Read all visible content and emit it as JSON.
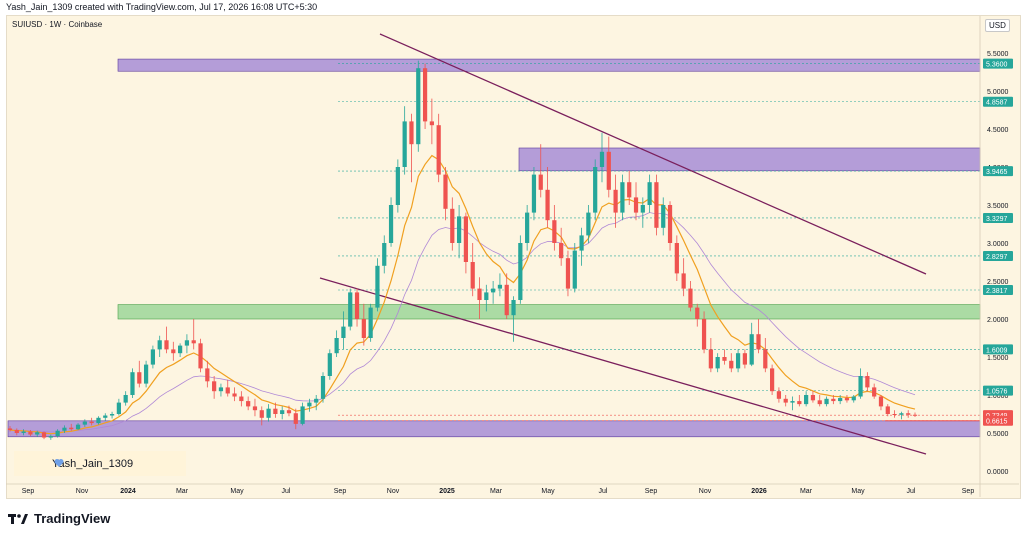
{
  "caption": "Yash_Jain_1309 created with TradingView.com, Jul 17, 2026 16:08 UTC+5:30",
  "symbol": "SUIUSD · 1W · Coinbase",
  "currency": "USD",
  "watermark": "Yash_Jain_1309",
  "brand": "TradingView",
  "colors": {
    "up": "#26a69a",
    "down": "#ef5350",
    "ema_short": "#f0a020",
    "ema_long": "#b089d6",
    "resistance_zone": "#9b7fd4",
    "support_zone": "#8fd28f",
    "trend": "#7a1f5c"
  },
  "chart_data": {
    "type": "candlestick",
    "y_ticks": [
      "5.5000",
      "5.0000",
      "4.5000",
      "4.0000",
      "3.5000",
      "3.0000",
      "2.5000",
      "2.0000",
      "1.5000",
      "1.0000",
      "0.5000",
      "0.0000"
    ],
    "x_ticks": [
      "Sep",
      "Nov",
      "2024",
      "Mar",
      "May",
      "Jul",
      "Sep",
      "Nov",
      "2025",
      "Mar",
      "May",
      "Jul",
      "Sep",
      "Nov",
      "2026",
      "Mar",
      "May",
      "Jul",
      "Sep"
    ],
    "level_labels": [
      {
        "label": "5.3600",
        "value": 5.36,
        "color": "#26a69a"
      },
      {
        "label": "4.8587",
        "value": 4.8587,
        "color": "#26a69a"
      },
      {
        "label": "3.9465",
        "value": 3.9465,
        "color": "#26a69a"
      },
      {
        "label": "3.3297",
        "value": 3.3297,
        "color": "#26a69a"
      },
      {
        "label": "2.8297",
        "value": 2.8297,
        "color": "#26a69a"
      },
      {
        "label": "2.3817",
        "value": 2.3817,
        "color": "#26a69a"
      },
      {
        "label": "1.6009",
        "value": 1.6009,
        "color": "#26a69a"
      },
      {
        "label": "1.0576",
        "value": 1.0576,
        "color": "#26a69a"
      },
      {
        "label": "0.7349",
        "value": 0.7349,
        "color": "#ef5350"
      },
      {
        "label": "0.6615",
        "value": 0.6615,
        "color": "#ef5350"
      }
    ],
    "zones": [
      {
        "from": 5.26,
        "to": 5.42,
        "color": "#9b7fd4"
      },
      {
        "from": 3.95,
        "to": 4.25,
        "color": "#9b7fd4"
      },
      {
        "from": 2.0,
        "to": 2.19,
        "color": "#8fd28f"
      },
      {
        "from": 0.45,
        "to": 0.66,
        "color": "#9b7fd4"
      }
    ],
    "trendlines": [
      {
        "from": [
          "Aug 2024",
          5.9
        ],
        "to": [
          "Jul 2026",
          2.6
        ]
      },
      {
        "from": [
          "Aug 2024",
          2.6
        ],
        "to": [
          "Jul 2026",
          0.22
        ]
      }
    ],
    "candles": [
      [
        0.56,
        0.59,
        0.52,
        0.54
      ],
      [
        0.54,
        0.56,
        0.47,
        0.5
      ],
      [
        0.5,
        0.55,
        0.47,
        0.52
      ],
      [
        0.52,
        0.54,
        0.46,
        0.48
      ],
      [
        0.48,
        0.53,
        0.45,
        0.51
      ],
      [
        0.51,
        0.52,
        0.42,
        0.44
      ],
      [
        0.44,
        0.48,
        0.41,
        0.46
      ],
      [
        0.46,
        0.55,
        0.44,
        0.53
      ],
      [
        0.53,
        0.6,
        0.5,
        0.57
      ],
      [
        0.57,
        0.62,
        0.53,
        0.55
      ],
      [
        0.55,
        0.63,
        0.54,
        0.61
      ],
      [
        0.61,
        0.68,
        0.58,
        0.65
      ],
      [
        0.65,
        0.7,
        0.6,
        0.63
      ],
      [
        0.63,
        0.72,
        0.61,
        0.7
      ],
      [
        0.7,
        0.76,
        0.66,
        0.73
      ],
      [
        0.73,
        0.78,
        0.69,
        0.75
      ],
      [
        0.75,
        0.95,
        0.73,
        0.9
      ],
      [
        0.9,
        1.05,
        0.86,
        1.0
      ],
      [
        1.0,
        1.35,
        0.96,
        1.3
      ],
      [
        1.3,
        1.45,
        1.1,
        1.15
      ],
      [
        1.15,
        1.45,
        1.1,
        1.4
      ],
      [
        1.4,
        1.65,
        1.35,
        1.6
      ],
      [
        1.6,
        1.78,
        1.5,
        1.72
      ],
      [
        1.72,
        1.9,
        1.55,
        1.6
      ],
      [
        1.6,
        1.7,
        1.45,
        1.55
      ],
      [
        1.55,
        1.68,
        1.5,
        1.65
      ],
      [
        1.65,
        1.8,
        1.55,
        1.72
      ],
      [
        1.72,
        2.0,
        1.6,
        1.68
      ],
      [
        1.68,
        1.74,
        1.3,
        1.35
      ],
      [
        1.35,
        1.45,
        1.1,
        1.18
      ],
      [
        1.18,
        1.25,
        0.95,
        1.05
      ],
      [
        1.05,
        1.15,
        0.98,
        1.1
      ],
      [
        1.1,
        1.2,
        0.98,
        1.02
      ],
      [
        1.02,
        1.1,
        0.92,
        0.98
      ],
      [
        0.98,
        1.05,
        0.85,
        0.92
      ],
      [
        0.92,
        0.98,
        0.8,
        0.85
      ],
      [
        0.85,
        0.95,
        0.72,
        0.8
      ],
      [
        0.8,
        0.85,
        0.6,
        0.7
      ],
      [
        0.7,
        0.88,
        0.65,
        0.82
      ],
      [
        0.82,
        0.9,
        0.7,
        0.75
      ],
      [
        0.75,
        0.85,
        0.68,
        0.8
      ],
      [
        0.8,
        0.86,
        0.72,
        0.76
      ],
      [
        0.76,
        0.82,
        0.55,
        0.62
      ],
      [
        0.62,
        0.9,
        0.6,
        0.85
      ],
      [
        0.85,
        0.95,
        0.78,
        0.9
      ],
      [
        0.9,
        1.0,
        0.8,
        0.95
      ],
      [
        0.95,
        1.3,
        0.9,
        1.25
      ],
      [
        1.25,
        1.6,
        1.2,
        1.55
      ],
      [
        1.55,
        1.85,
        1.5,
        1.75
      ],
      [
        1.75,
        2.1,
        1.6,
        1.9
      ],
      [
        1.9,
        2.4,
        1.85,
        2.35
      ],
      [
        2.35,
        2.4,
        1.9,
        2.0
      ],
      [
        2.0,
        2.2,
        1.65,
        1.75
      ],
      [
        1.75,
        2.2,
        1.7,
        2.15
      ],
      [
        2.15,
        2.8,
        2.1,
        2.7
      ],
      [
        2.7,
        3.1,
        2.6,
        3.0
      ],
      [
        3.0,
        3.6,
        2.95,
        3.5
      ],
      [
        3.5,
        4.1,
        3.4,
        4.0
      ],
      [
        4.0,
        4.8,
        3.9,
        4.6
      ],
      [
        4.6,
        4.7,
        3.8,
        4.3
      ],
      [
        4.3,
        5.4,
        4.2,
        5.3
      ],
      [
        5.3,
        5.36,
        4.5,
        4.6
      ],
      [
        4.6,
        4.9,
        4.3,
        4.55
      ],
      [
        4.55,
        4.7,
        3.8,
        3.9
      ],
      [
        3.9,
        4.0,
        3.3,
        3.45
      ],
      [
        3.45,
        3.6,
        2.9,
        3.0
      ],
      [
        3.0,
        3.5,
        2.8,
        3.35
      ],
      [
        3.35,
        3.4,
        2.6,
        2.75
      ],
      [
        2.75,
        3.0,
        2.3,
        2.4
      ],
      [
        2.4,
        2.55,
        2.0,
        2.25
      ],
      [
        2.25,
        2.45,
        2.1,
        2.35
      ],
      [
        2.35,
        2.5,
        2.2,
        2.4
      ],
      [
        2.4,
        2.6,
        2.3,
        2.45
      ],
      [
        2.45,
        2.6,
        2.0,
        2.05
      ],
      [
        2.05,
        2.3,
        1.7,
        2.25
      ],
      [
        2.25,
        3.1,
        2.2,
        3.0
      ],
      [
        3.0,
        3.5,
        2.9,
        3.4
      ],
      [
        3.4,
        4.0,
        3.3,
        3.9
      ],
      [
        3.9,
        4.3,
        3.6,
        3.7
      ],
      [
        3.7,
        4.0,
        3.2,
        3.3
      ],
      [
        3.3,
        3.5,
        2.9,
        3.0
      ],
      [
        3.0,
        3.2,
        2.7,
        2.8
      ],
      [
        2.8,
        2.9,
        2.3,
        2.4
      ],
      [
        2.4,
        3.0,
        2.35,
        2.9
      ],
      [
        2.9,
        3.2,
        2.7,
        3.1
      ],
      [
        3.1,
        3.5,
        3.0,
        3.4
      ],
      [
        3.4,
        4.1,
        3.3,
        4.0
      ],
      [
        4.0,
        4.45,
        3.8,
        4.2
      ],
      [
        4.2,
        4.4,
        3.6,
        3.7
      ],
      [
        3.7,
        3.9,
        3.2,
        3.4
      ],
      [
        3.4,
        3.9,
        3.3,
        3.8
      ],
      [
        3.8,
        3.95,
        3.5,
        3.6
      ],
      [
        3.6,
        3.8,
        3.3,
        3.4
      ],
      [
        3.4,
        3.6,
        3.2,
        3.5
      ],
      [
        3.5,
        3.9,
        3.4,
        3.8
      ],
      [
        3.8,
        3.9,
        3.1,
        3.2
      ],
      [
        3.2,
        3.6,
        3.1,
        3.5
      ],
      [
        3.5,
        3.55,
        2.9,
        3.0
      ],
      [
        3.0,
        3.1,
        2.5,
        2.6
      ],
      [
        2.6,
        2.8,
        2.3,
        2.4
      ],
      [
        2.4,
        2.5,
        2.1,
        2.15
      ],
      [
        2.15,
        2.2,
        1.9,
        2.0
      ],
      [
        2.0,
        2.1,
        1.55,
        1.6
      ],
      [
        1.6,
        1.75,
        1.3,
        1.35
      ],
      [
        1.35,
        1.55,
        1.3,
        1.5
      ],
      [
        1.5,
        1.6,
        1.4,
        1.45
      ],
      [
        1.45,
        1.55,
        1.3,
        1.35
      ],
      [
        1.35,
        1.6,
        1.3,
        1.55
      ],
      [
        1.55,
        1.6,
        1.35,
        1.4
      ],
      [
        1.4,
        1.95,
        1.38,
        1.8
      ],
      [
        1.8,
        2.0,
        1.55,
        1.6
      ],
      [
        1.6,
        1.75,
        1.3,
        1.35
      ],
      [
        1.35,
        1.4,
        1.0,
        1.05
      ],
      [
        1.05,
        1.1,
        0.9,
        0.95
      ],
      [
        0.95,
        1.0,
        0.85,
        0.9
      ],
      [
        0.9,
        0.98,
        0.8,
        0.92
      ],
      [
        0.92,
        1.0,
        0.85,
        0.88
      ],
      [
        0.88,
        1.05,
        0.85,
        1.0
      ],
      [
        1.0,
        1.05,
        0.9,
        0.93
      ],
      [
        0.93,
        1.0,
        0.85,
        0.88
      ],
      [
        0.88,
        0.98,
        0.85,
        0.95
      ],
      [
        0.95,
        1.0,
        0.88,
        0.92
      ],
      [
        0.92,
        1.0,
        0.88,
        0.96
      ],
      [
        0.96,
        1.0,
        0.9,
        0.93
      ],
      [
        0.93,
        1.0,
        0.9,
        0.98
      ],
      [
        0.98,
        1.35,
        0.95,
        1.25
      ],
      [
        1.25,
        1.3,
        1.05,
        1.1
      ],
      [
        1.1,
        1.15,
        0.95,
        0.98
      ],
      [
        0.98,
        1.0,
        0.8,
        0.85
      ],
      [
        0.85,
        0.88,
        0.72,
        0.75
      ],
      [
        0.75,
        0.8,
        0.7,
        0.74
      ],
      [
        0.74,
        0.78,
        0.68,
        0.76
      ],
      [
        0.76,
        0.8,
        0.7,
        0.74
      ],
      [
        0.74,
        0.77,
        0.71,
        0.735
      ]
    ]
  }
}
